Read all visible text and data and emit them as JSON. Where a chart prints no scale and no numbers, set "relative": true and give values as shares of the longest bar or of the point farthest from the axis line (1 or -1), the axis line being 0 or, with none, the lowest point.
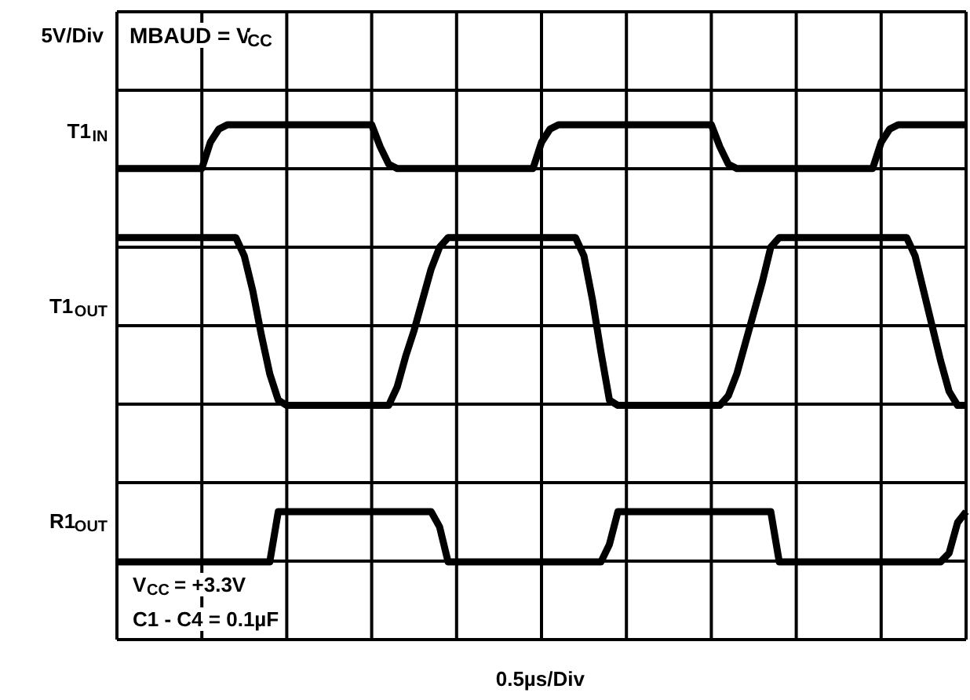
{
  "chart_data": {
    "type": "line",
    "relative": true,
    "grid": true,
    "ylabel": "5V/Div",
    "annotations": [
      "MBAUD = V$_{CC}$",
      "V$_{CC}$ = +3.3V",
      "C1 - C4 = 0.1µF",
      "0.5µs/Div"
    ],
    "categories": [
      null,
      null,
      null,
      null,
      null,
      null,
      null,
      null,
      null,
      null,
      null,
      null,
      null,
      null,
      null,
      null,
      null,
      null,
      null,
      null,
      null,
      null,
      null,
      null,
      null,
      null,
      null,
      null,
      null,
      null,
      null,
      null,
      null,
      null,
      null,
      null,
      null,
      null,
      null,
      null,
      null,
      null,
      null,
      null,
      null,
      null,
      null,
      null,
      null,
      null,
      null,
      null,
      null,
      null,
      null,
      null,
      null,
      null,
      null,
      null,
      null,
      null,
      null,
      null,
      null,
      null,
      null,
      null,
      null,
      null,
      null,
      null,
      null,
      null,
      null,
      null,
      null,
      null,
      null,
      null,
      null,
      null,
      null,
      null,
      null,
      null,
      null,
      null,
      null,
      null,
      null,
      null,
      null,
      null,
      null,
      null,
      null,
      null,
      null,
      null,
      null
    ],
    "series": [
      {
        "name": "T1$_{IN}$",
        "color": "#000000",
        "values": [
          0.9,
          0.9,
          0.9,
          0.9,
          0.9,
          0.9,
          0.9,
          0.9,
          0.9,
          0.9,
          0.9,
          0.96,
          0.99,
          1.0,
          1.0,
          1.0,
          1.0,
          1.0,
          1.0,
          1.0,
          1.0,
          1.0,
          1.0,
          1.0,
          1.0,
          1.0,
          1.0,
          1.0,
          1.0,
          1.0,
          1.0,
          0.95,
          0.91,
          0.9,
          0.9,
          0.9,
          0.9,
          0.9,
          0.9,
          0.9,
          0.9,
          0.9,
          0.9,
          0.9,
          0.9,
          0.9,
          0.9,
          0.9,
          0.9,
          0.9,
          0.96,
          0.99,
          1.0,
          1.0,
          1.0,
          1.0,
          1.0,
          1.0,
          1.0,
          1.0,
          1.0,
          1.0,
          1.0,
          1.0,
          1.0,
          1.0,
          1.0,
          1.0,
          1.0,
          1.0,
          1.0,
          0.95,
          0.91,
          0.9,
          0.9,
          0.9,
          0.9,
          0.9,
          0.9,
          0.9,
          0.9,
          0.9,
          0.9,
          0.9,
          0.9,
          0.9,
          0.9,
          0.9,
          0.9,
          0.9,
          0.96,
          0.99,
          1.0,
          1.0,
          1.0,
          1.0,
          1.0,
          1.0,
          1.0,
          1.0,
          1.0
        ]
      },
      {
        "name": "T1$_{OUT}$",
        "color": "#000000",
        "values": [
          0.742,
          0.742,
          0.742,
          0.742,
          0.742,
          0.742,
          0.742,
          0.742,
          0.742,
          0.742,
          0.742,
          0.742,
          0.742,
          0.742,
          0.742,
          0.7,
          0.62,
          0.52,
          0.43,
          0.37,
          0.358,
          0.358,
          0.358,
          0.358,
          0.358,
          0.358,
          0.358,
          0.358,
          0.358,
          0.358,
          0.358,
          0.358,
          0.358,
          0.4,
          0.47,
          0.53,
          0.6,
          0.67,
          0.72,
          0.742,
          0.742,
          0.742,
          0.742,
          0.742,
          0.742,
          0.742,
          0.742,
          0.742,
          0.742,
          0.742,
          0.742,
          0.742,
          0.742,
          0.742,
          0.742,
          0.7,
          0.6,
          0.48,
          0.37,
          0.358,
          0.358,
          0.358,
          0.358,
          0.358,
          0.358,
          0.358,
          0.358,
          0.358,
          0.358,
          0.358,
          0.358,
          0.358,
          0.38,
          0.43,
          0.5,
          0.57,
          0.64,
          0.72,
          0.742,
          0.742,
          0.742,
          0.742,
          0.742,
          0.742,
          0.742,
          0.742,
          0.742,
          0.742,
          0.742,
          0.742,
          0.742,
          0.742,
          0.742,
          0.742,
          0.7,
          0.62,
          0.54,
          0.46,
          0.39,
          0.358,
          0.358
        ]
      },
      {
        "name": "R1$_{OUT}$",
        "color": "#000000",
        "values": [
          0,
          0,
          0,
          0,
          0,
          0,
          0,
          0,
          0,
          0,
          0,
          0,
          0,
          0,
          0,
          0,
          0,
          0,
          0,
          0.115,
          0.115,
          0.115,
          0.115,
          0.115,
          0.115,
          0.115,
          0.115,
          0.115,
          0.115,
          0.115,
          0.115,
          0.115,
          0.115,
          0.115,
          0.115,
          0.115,
          0.115,
          0.115,
          0.08,
          0,
          0,
          0,
          0,
          0,
          0,
          0,
          0,
          0,
          0,
          0,
          0,
          0,
          0,
          0,
          0,
          0,
          0,
          0,
          0.04,
          0.115,
          0.115,
          0.115,
          0.115,
          0.115,
          0.115,
          0.115,
          0.115,
          0.115,
          0.115,
          0.115,
          0.115,
          0.115,
          0.115,
          0.115,
          0.115,
          0.115,
          0.115,
          0.115,
          0,
          0,
          0,
          0,
          0,
          0,
          0,
          0,
          0,
          0,
          0,
          0,
          0,
          0,
          0,
          0,
          0,
          0,
          0,
          0,
          0.02,
          0.09,
          0.115
        ]
      }
    ]
  }
}
